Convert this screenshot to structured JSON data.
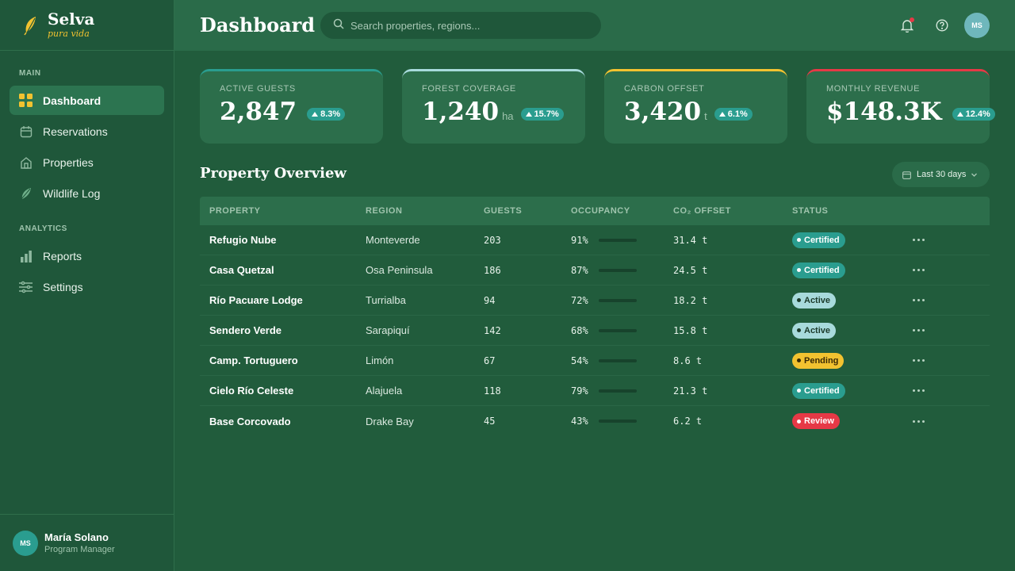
{
  "brand": {
    "name": "Selva",
    "tagline": "pura vida"
  },
  "sidebar": {
    "main_label": "MAIN",
    "analytics_label": "ANALYTICS",
    "main_items": [
      {
        "label": "Dashboard",
        "icon": "grid-icon",
        "active": true
      },
      {
        "label": "Reservations",
        "icon": "calendar-icon"
      },
      {
        "label": "Properties",
        "icon": "lodge-icon"
      },
      {
        "label": "Wildlife Log",
        "icon": "leaf-icon"
      }
    ],
    "analytics_items": [
      {
        "label": "Reports",
        "icon": "bar-chart-icon"
      },
      {
        "label": "Settings",
        "icon": "sliders-icon"
      }
    ],
    "user": {
      "initials": "MS",
      "name": "María Solano",
      "role": "Program Manager"
    }
  },
  "header": {
    "title": "Dashboard",
    "search_placeholder": "Search properties, regions...",
    "avatar_initials": "MS"
  },
  "kpis": [
    {
      "label": "ACTIVE GUESTS",
      "value": "2,847",
      "unit": "",
      "delta": "8.3%",
      "accent": "#2a9d8f"
    },
    {
      "label": "FOREST COVERAGE",
      "value": "1,240",
      "unit": "ha",
      "delta": "15.7%",
      "accent": "#a8dadc"
    },
    {
      "label": "CARBON OFFSET",
      "value": "3,420",
      "unit": "t",
      "delta": "6.1%",
      "accent": "#f2c230"
    },
    {
      "label": "MONTHLY REVENUE",
      "value": "$148.3K",
      "unit": "",
      "delta": "12.4%",
      "accent": "#e63946"
    }
  ],
  "overview": {
    "title": "Property Overview",
    "range": "Last 30 days",
    "columns": [
      "PROPERTY",
      "REGION",
      "GUESTS",
      "OCCUPANCY",
      "CO₂ OFFSET",
      "STATUS"
    ],
    "rows": [
      {
        "property": "Refugio Nube",
        "region": "Monteverde",
        "guests": "203",
        "occupancy": "91%",
        "co2": "31.4 t",
        "status": "Certified",
        "status_type": "cert"
      },
      {
        "property": "Casa Quetzal",
        "region": "Osa Peninsula",
        "guests": "186",
        "occupancy": "87%",
        "co2": "24.5 t",
        "status": "Certified",
        "status_type": "cert"
      },
      {
        "property": "Río Pacuare Lodge",
        "region": "Turrialba",
        "guests": "94",
        "occupancy": "72%",
        "co2": "18.2 t",
        "status": "Active",
        "status_type": "act"
      },
      {
        "property": "Sendero Verde",
        "region": "Sarapiquí",
        "guests": "142",
        "occupancy": "68%",
        "co2": "15.8 t",
        "status": "Active",
        "status_type": "act"
      },
      {
        "property": "Camp. Tortuguero",
        "region": "Limón",
        "guests": "67",
        "occupancy": "54%",
        "co2": "8.6 t",
        "status": "Pending",
        "status_type": "pend"
      },
      {
        "property": "Cielo Río Celeste",
        "region": "Alajuela",
        "guests": "118",
        "occupancy": "79%",
        "co2": "21.3 t",
        "status": "Certified",
        "status_type": "cert"
      },
      {
        "property": "Base Corcovado",
        "region": "Drake Bay",
        "guests": "45",
        "occupancy": "43%",
        "co2": "6.2 t",
        "status": "Review",
        "status_type": "rev"
      }
    ]
  }
}
